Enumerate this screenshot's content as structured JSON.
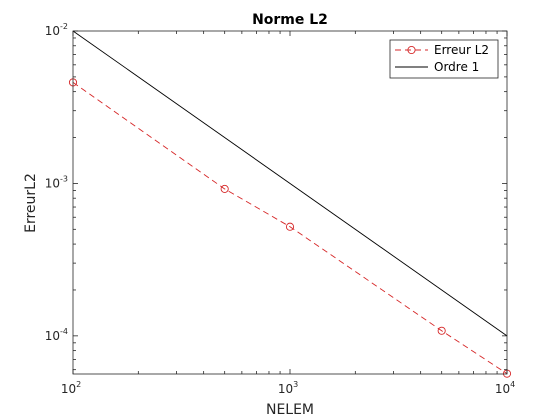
{
  "chart_data": {
    "type": "line",
    "title": "Norme L2",
    "xlabel": "NELEM",
    "ylabel": "ErreurL2",
    "xscale": "log",
    "yscale": "log",
    "xlim": [
      100,
      10000
    ],
    "ylim": [
      5.62e-05,
      0.01
    ],
    "grid": false,
    "legend_position": "top-right",
    "x_ticks": [
      {
        "value": 100,
        "base": "10",
        "exp": "2"
      },
      {
        "value": 1000,
        "base": "10",
        "exp": "3"
      },
      {
        "value": 10000,
        "base": "10",
        "exp": "4"
      }
    ],
    "y_ticks": [
      {
        "value": 0.01,
        "base": "10",
        "exp": "-2"
      },
      {
        "value": 0.001,
        "base": "10",
        "exp": "-3"
      },
      {
        "value": 0.0001,
        "base": "10",
        "exp": "-4"
      }
    ],
    "series": [
      {
        "name": "Erreur L2",
        "color": "#d62728",
        "line_style": "dashed",
        "marker": "circle",
        "x": [
          100,
          500,
          1000,
          5000,
          10000
        ],
        "y": [
          0.0046,
          0.00092,
          0.00052,
          0.000108,
          5.65e-05
        ]
      },
      {
        "name": "Ordre 1",
        "color": "#000000",
        "line_style": "solid",
        "marker": "none",
        "x": [
          100,
          10000
        ],
        "y": [
          0.01,
          0.0001
        ]
      }
    ]
  }
}
